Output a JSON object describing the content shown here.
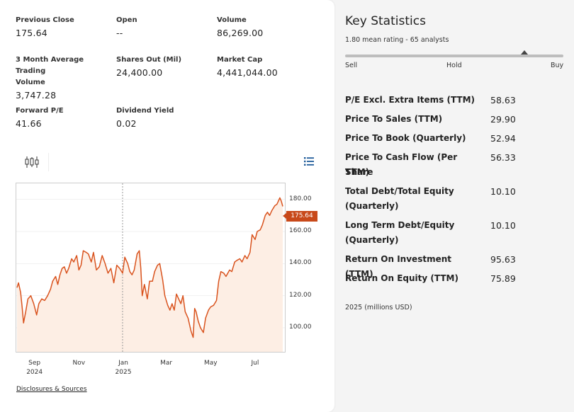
{
  "overview": {
    "previous_close": {
      "label": "Previous Close",
      "value": "175.64"
    },
    "open": {
      "label": "Open",
      "value": "--"
    },
    "volume": {
      "label": "Volume",
      "value": "86,269.00"
    },
    "avg_volume": {
      "label_line1": "3 Month Average Trading",
      "label_line2": "Volume",
      "value": "3,747.28"
    },
    "shares_out": {
      "label": "Shares Out (Mil)",
      "value": "24,400.00"
    },
    "market_cap": {
      "label": "Market Cap",
      "value": "4,441,044.00"
    },
    "forward_pe": {
      "label": "Forward P/E",
      "value": "41.66"
    },
    "dividend_yield": {
      "label": "Dividend Yield",
      "value": "0.02"
    }
  },
  "toolbar": {
    "candlestick_icon": "candlestick-chart-icon",
    "list_icon": "list-menu-icon"
  },
  "chart_data": {
    "type": "area",
    "ylim": [
      85,
      190
    ],
    "y_ticks": [
      "180.00",
      "160.00",
      "140.00",
      "120.00",
      "100.00"
    ],
    "y_tick_values": [
      180,
      160,
      140,
      120,
      100
    ],
    "x_ticks": [
      {
        "label": "Sep",
        "sub": "2024",
        "date": "2024-09-01"
      },
      {
        "label": "Nov",
        "sub": "",
        "date": "2024-11-01"
      },
      {
        "label": "Jan",
        "sub": "2025",
        "date": "2025-01-01"
      },
      {
        "label": "Mar",
        "sub": "",
        "date": "2025-03-01"
      },
      {
        "label": "May",
        "sub": "",
        "date": "2025-05-01"
      },
      {
        "label": "Jul",
        "sub": "",
        "date": "2025-07-01"
      }
    ],
    "x_range": [
      "2024-08-08",
      "2025-08-08"
    ],
    "current_price": "175.64",
    "line_color": "#d9531e",
    "fill_color": "#fdeee4",
    "crosshair_date": "2024-12-31",
    "series": [
      {
        "values": [
          [
            "2024-08-08",
            125
          ],
          [
            "2024-08-10",
            128
          ],
          [
            "2024-08-13",
            122
          ],
          [
            "2024-08-15",
            113
          ],
          [
            "2024-08-17",
            103
          ],
          [
            "2024-08-20",
            110
          ],
          [
            "2024-08-23",
            118
          ],
          [
            "2024-08-27",
            120
          ],
          [
            "2024-08-31",
            115
          ],
          [
            "2024-09-04",
            108
          ],
          [
            "2024-09-07",
            115
          ],
          [
            "2024-09-11",
            118
          ],
          [
            "2024-09-15",
            117
          ],
          [
            "2024-09-19",
            120
          ],
          [
            "2024-09-23",
            124
          ],
          [
            "2024-09-26",
            129
          ],
          [
            "2024-09-30",
            132
          ],
          [
            "2024-10-03",
            127
          ],
          [
            "2024-10-06",
            133
          ],
          [
            "2024-10-09",
            137
          ],
          [
            "2024-10-12",
            138
          ],
          [
            "2024-10-15",
            134
          ],
          [
            "2024-10-18",
            137
          ],
          [
            "2024-10-22",
            143
          ],
          [
            "2024-10-25",
            141
          ],
          [
            "2024-10-29",
            145
          ],
          [
            "2024-11-01",
            136
          ],
          [
            "2024-11-04",
            139
          ],
          [
            "2024-11-07",
            148
          ],
          [
            "2024-11-11",
            147
          ],
          [
            "2024-11-14",
            146
          ],
          [
            "2024-11-18",
            141
          ],
          [
            "2024-11-21",
            147
          ],
          [
            "2024-11-25",
            136
          ],
          [
            "2024-11-29",
            138
          ],
          [
            "2024-12-03",
            145
          ],
          [
            "2024-12-07",
            140
          ],
          [
            "2024-12-11",
            134
          ],
          [
            "2024-12-15",
            137
          ],
          [
            "2024-12-19",
            128
          ],
          [
            "2024-12-23",
            139
          ],
          [
            "2024-12-27",
            137
          ],
          [
            "2024-12-31",
            134
          ],
          [
            "2025-01-03",
            144
          ],
          [
            "2025-01-07",
            140
          ],
          [
            "2025-01-10",
            135
          ],
          [
            "2025-01-13",
            133
          ],
          [
            "2025-01-16",
            136
          ],
          [
            "2025-01-20",
            146
          ],
          [
            "2025-01-23",
            148
          ],
          [
            "2025-01-25",
            137
          ],
          [
            "2025-01-27",
            120
          ],
          [
            "2025-01-30",
            127
          ],
          [
            "2025-02-03",
            118
          ],
          [
            "2025-02-06",
            129
          ],
          [
            "2025-02-10",
            129
          ],
          [
            "2025-02-13",
            135
          ],
          [
            "2025-02-17",
            139
          ],
          [
            "2025-02-20",
            140
          ],
          [
            "2025-02-24",
            130
          ],
          [
            "2025-02-27",
            120
          ],
          [
            "2025-03-03",
            114
          ],
          [
            "2025-03-06",
            111
          ],
          [
            "2025-03-09",
            115
          ],
          [
            "2025-03-12",
            111
          ],
          [
            "2025-03-15",
            121
          ],
          [
            "2025-03-18",
            118
          ],
          [
            "2025-03-21",
            115
          ],
          [
            "2025-03-24",
            120
          ],
          [
            "2025-03-27",
            110
          ],
          [
            "2025-03-31",
            106
          ],
          [
            "2025-04-04",
            98
          ],
          [
            "2025-04-07",
            94
          ],
          [
            "2025-04-09",
            112
          ],
          [
            "2025-04-11",
            110
          ],
          [
            "2025-04-14",
            104
          ],
          [
            "2025-04-17",
            100
          ],
          [
            "2025-04-21",
            97
          ],
          [
            "2025-04-24",
            106
          ],
          [
            "2025-04-28",
            111
          ],
          [
            "2025-05-01",
            113
          ],
          [
            "2025-05-05",
            114
          ],
          [
            "2025-05-09",
            117
          ],
          [
            "2025-05-12",
            129
          ],
          [
            "2025-05-15",
            135
          ],
          [
            "2025-05-19",
            134
          ],
          [
            "2025-05-22",
            132
          ],
          [
            "2025-05-27",
            136
          ],
          [
            "2025-05-30",
            135
          ],
          [
            "2025-06-03",
            141
          ],
          [
            "2025-06-06",
            142
          ],
          [
            "2025-06-10",
            143
          ],
          [
            "2025-06-13",
            141
          ],
          [
            "2025-06-17",
            145
          ],
          [
            "2025-06-20",
            143
          ],
          [
            "2025-06-24",
            147
          ],
          [
            "2025-06-27",
            158
          ],
          [
            "2025-07-01",
            155
          ],
          [
            "2025-07-04",
            160
          ],
          [
            "2025-07-08",
            161
          ],
          [
            "2025-07-11",
            164
          ],
          [
            "2025-07-15",
            170
          ],
          [
            "2025-07-18",
            172
          ],
          [
            "2025-07-21",
            170
          ],
          [
            "2025-07-24",
            173
          ],
          [
            "2025-07-28",
            176
          ],
          [
            "2025-07-31",
            177
          ],
          [
            "2025-08-04",
            181
          ],
          [
            "2025-08-06",
            179
          ],
          [
            "2025-08-08",
            175.64
          ]
        ]
      }
    ]
  },
  "disclosures_link": "Disclosures & Sources",
  "key_statistics": {
    "title": "Key Statistics",
    "rating_text": "1.80 mean rating - 65 analysts",
    "rating_fraction": 0.82,
    "rating_labels": {
      "sell": "Sell",
      "hold": "Hold",
      "buy": "Buy"
    },
    "rows": [
      {
        "label": "P/E Excl. Extra Items (TTM)",
        "value": "58.63"
      },
      {
        "label": "Price To Sales (TTM)",
        "value": "29.90"
      },
      {
        "label": "Price To Book (Quarterly)",
        "value": "52.94"
      },
      {
        "label_line1": "Price To Cash Flow (Per Share",
        "label_line2": "TTM)",
        "value": "56.33"
      },
      {
        "label_line1": "Total Debt/Total Equity",
        "label_line2": "(Quarterly)",
        "value": "10.10"
      },
      {
        "label_line1": "Long Term Debt/Equity",
        "label_line2": "(Quarterly)",
        "value": "10.10"
      },
      {
        "label": "Return On Investment (TTM)",
        "value": "95.63"
      },
      {
        "label": "Return On Equity (TTM)",
        "value": "75.89"
      }
    ],
    "note": "2025 (millions USD)"
  }
}
